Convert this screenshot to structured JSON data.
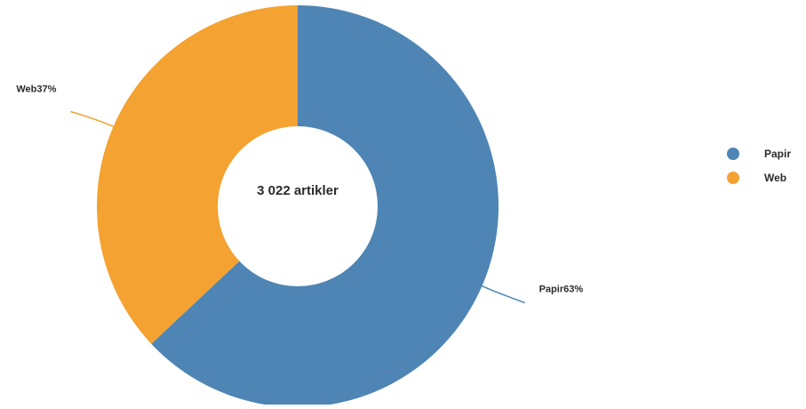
{
  "chart_data": {
    "type": "pie",
    "variant": "donut",
    "center_label": "3 022 artikler",
    "slices": [
      {
        "label": "Papir",
        "value": 63,
        "display": "Papir63%",
        "color": "#4e85b4"
      },
      {
        "label": "Web",
        "value": 37,
        "display": "Web37%",
        "color": "#f4a231"
      }
    ],
    "legend": {
      "position": "right",
      "items": [
        {
          "label": "Papir",
          "color": "#4e85b4"
        },
        {
          "label": "Web",
          "color": "#f4a231"
        }
      ]
    }
  }
}
